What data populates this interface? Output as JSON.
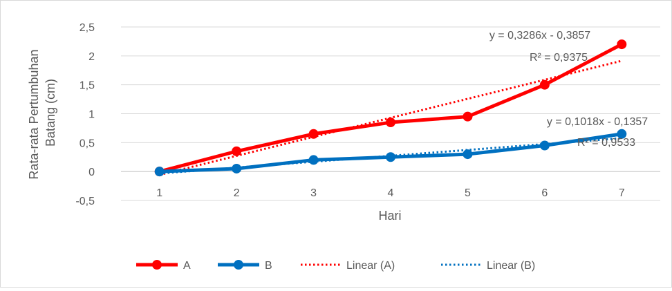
{
  "chart_data": {
    "type": "line",
    "xlabel": "Hari",
    "ylabel_lines": [
      "Rata-rata Pertumbuhan",
      "Batang (cm)"
    ],
    "categories": [
      "1",
      "2",
      "3",
      "4",
      "5",
      "6",
      "7"
    ],
    "x": [
      1,
      2,
      3,
      4,
      5,
      6,
      7
    ],
    "ylim": [
      -0.5,
      2.5
    ],
    "yticks": [
      -0.5,
      0,
      0.5,
      1,
      1.5,
      2,
      2.5
    ],
    "ytick_labels": [
      "-0,5",
      "0",
      "0,5",
      "1",
      "1,5",
      "2",
      "2,5"
    ],
    "grid": true,
    "legend_position": "bottom",
    "series": [
      {
        "name": "A",
        "color": "#ff0000",
        "values": [
          0,
          0.35,
          0.65,
          0.85,
          0.95,
          1.5,
          2.2
        ],
        "trendline": {
          "name": "Linear (A)",
          "slope": 0.3286,
          "intercept": -0.3857,
          "equation": "y = 0,3286x - 0,3857",
          "r2": "R² = 0,9375"
        }
      },
      {
        "name": "B",
        "color": "#0070c0",
        "values": [
          0,
          0.05,
          0.2,
          0.25,
          0.3,
          0.45,
          0.65
        ],
        "trendline": {
          "name": "Linear (B)",
          "slope": 0.1018,
          "intercept": -0.1357,
          "equation": "y = 0,1018x - 0,1357",
          "r2": "R² = 0,9533"
        }
      }
    ]
  }
}
